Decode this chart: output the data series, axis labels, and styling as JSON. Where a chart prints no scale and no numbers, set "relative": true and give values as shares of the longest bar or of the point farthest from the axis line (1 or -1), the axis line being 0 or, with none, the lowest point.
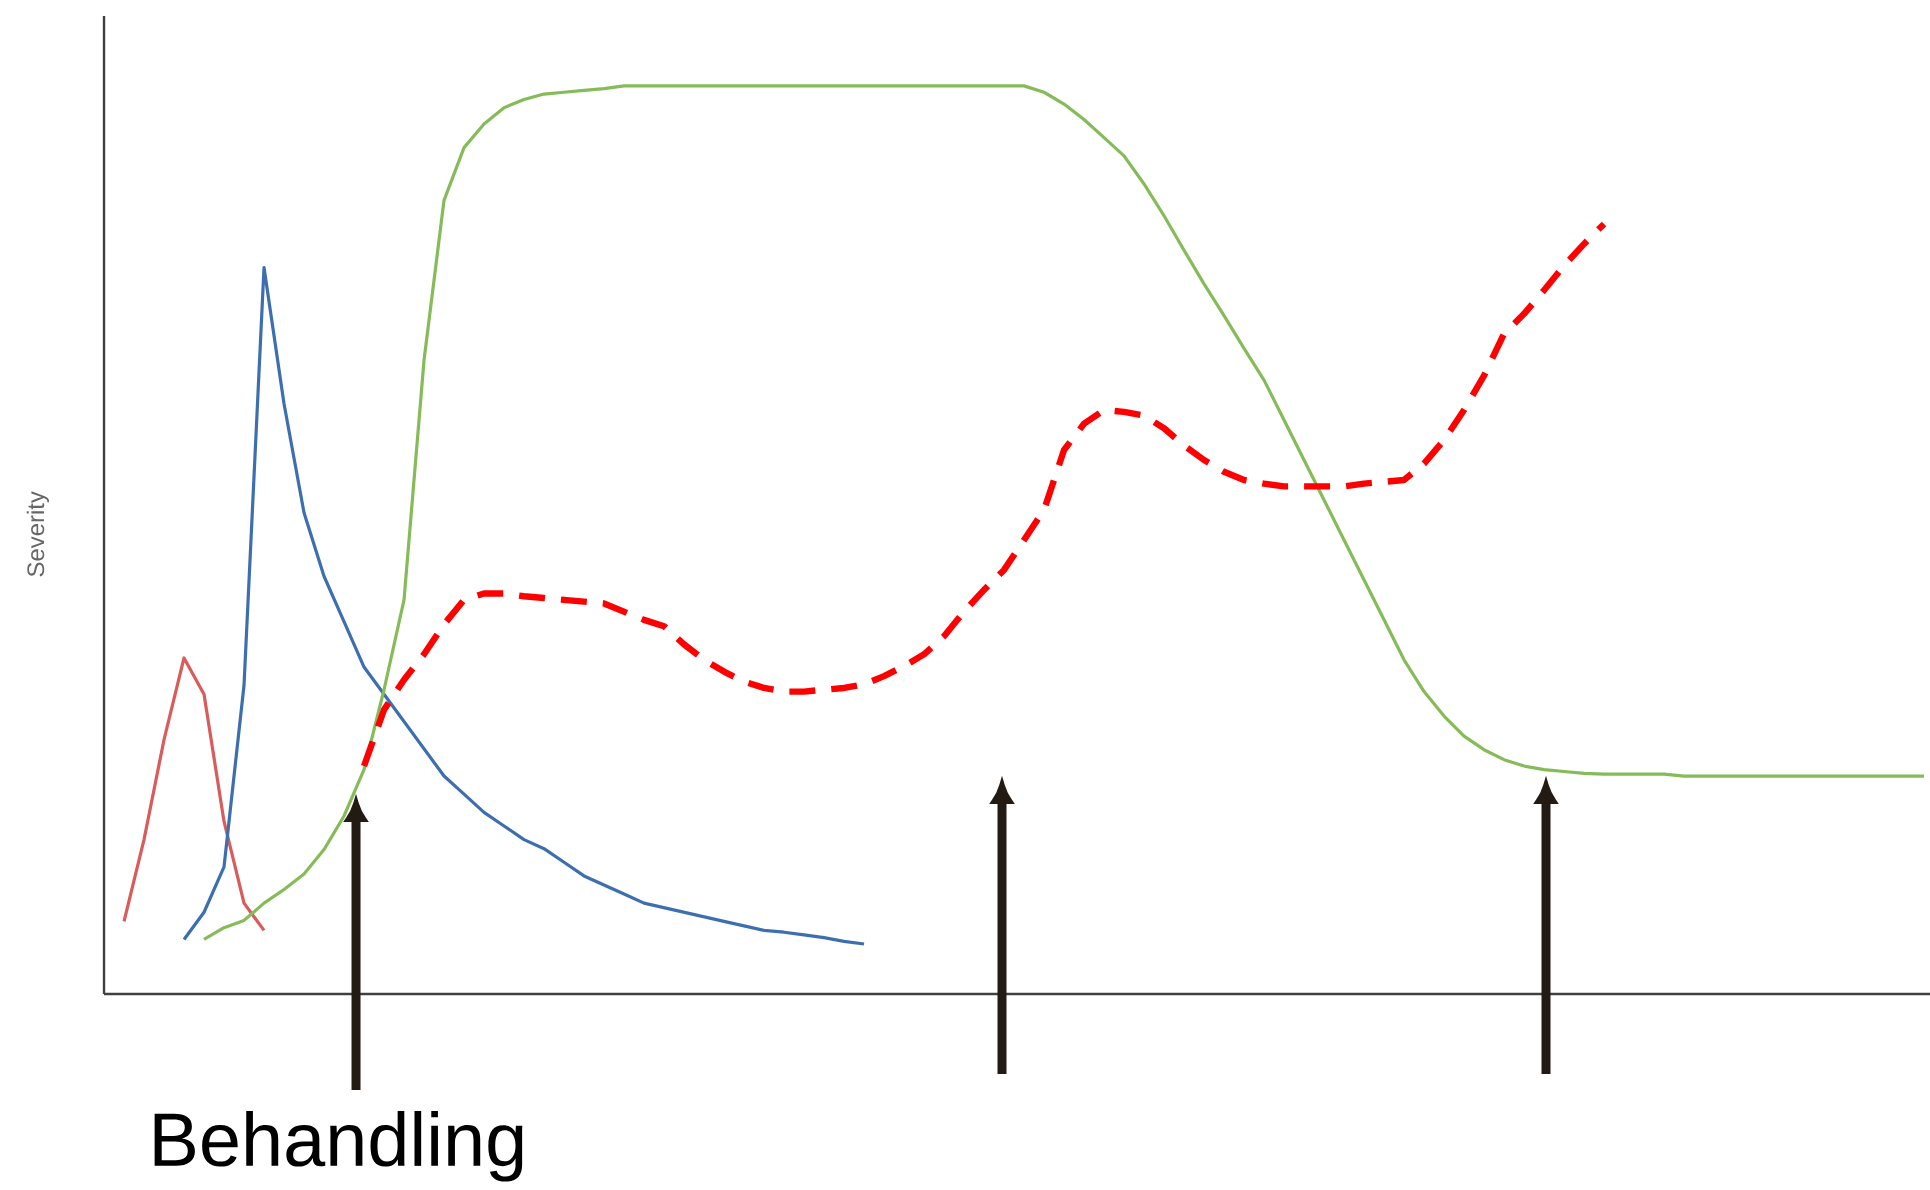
{
  "chart_data": {
    "type": "line",
    "relative": true,
    "ylabel": "Severity",
    "annotations": [
      "Behandling"
    ],
    "marker": "none",
    "categories": [
      null,
      null,
      null,
      null,
      null,
      null,
      null,
      null,
      null,
      null,
      null,
      null,
      null,
      null,
      null,
      null,
      null,
      null,
      null,
      null,
      null,
      null,
      null,
      null,
      null,
      null,
      null,
      null,
      null,
      null,
      null,
      null,
      null,
      null,
      null,
      null,
      null,
      null,
      null,
      null,
      null,
      null,
      null,
      null,
      null,
      null,
      null,
      null,
      null,
      null,
      null,
      null,
      null,
      null,
      null,
      null,
      null,
      null,
      null,
      null,
      null,
      null,
      null,
      null,
      null,
      null,
      null,
      null,
      null,
      null,
      null,
      null,
      null,
      null,
      null,
      null,
      null,
      null,
      null,
      null,
      null,
      null,
      null,
      null,
      null,
      null,
      null,
      null,
      null,
      null,
      null,
      null
    ],
    "series": [
      {
        "color": "#d95b5b",
        "line_style": "solid",
        "values": [
          null,
          0.08,
          0.17,
          0.28,
          0.37,
          0.33,
          0.19,
          0.1,
          0.07,
          null,
          null,
          null,
          null,
          null,
          null,
          null,
          null,
          null,
          null,
          null,
          null,
          null,
          null,
          null,
          null,
          null,
          null,
          null,
          null,
          null,
          null,
          null,
          null,
          null,
          null,
          null,
          null,
          null,
          null,
          null,
          null,
          null,
          null,
          null,
          null,
          null,
          null,
          null,
          null,
          null,
          null,
          null,
          null,
          null,
          null,
          null,
          null,
          null,
          null,
          null,
          null,
          null,
          null,
          null,
          null,
          null,
          null,
          null,
          null,
          null,
          null,
          null,
          null,
          null,
          null,
          null,
          null,
          null,
          null,
          null,
          null,
          null,
          null,
          null,
          null,
          null,
          null,
          null,
          null,
          null,
          null,
          null
        ]
      },
      {
        "color": "#3d6fb0",
        "line_style": "solid",
        "values": [
          null,
          null,
          null,
          null,
          0.06,
          0.09,
          0.14,
          0.34,
          0.8,
          0.65,
          0.53,
          0.46,
          0.41,
          0.36,
          0.33,
          0.3,
          0.27,
          0.24,
          0.22,
          0.2,
          0.185,
          0.17,
          0.16,
          0.145,
          0.13,
          0.12,
          0.11,
          0.1,
          0.095,
          0.09,
          0.085,
          0.08,
          0.075,
          0.07,
          0.068,
          0.065,
          0.062,
          0.058,
          0.055,
          null,
          null,
          null,
          null,
          null,
          null,
          null,
          null,
          null,
          null,
          null,
          null,
          null,
          null,
          null,
          null,
          null,
          null,
          null,
          null,
          null,
          null,
          null,
          null,
          null,
          null,
          null,
          null,
          null,
          null,
          null,
          null,
          null,
          null,
          null,
          null,
          null,
          null,
          null,
          null,
          null,
          null,
          null,
          null,
          null,
          null,
          null,
          null,
          null,
          null,
          null,
          null,
          null
        ]
      },
      {
        "color": "#86bb5a",
        "line_style": "solid",
        "values": [
          null,
          null,
          null,
          null,
          null,
          0.06,
          0.073,
          0.081,
          0.1,
          0.115,
          0.132,
          0.159,
          0.196,
          0.247,
          0.335,
          0.434,
          0.698,
          0.874,
          0.932,
          0.958,
          0.976,
          0.985,
          0.991,
          0.993,
          0.995,
          0.997,
          1.0,
          1.0,
          1.0,
          1.0,
          1.0,
          1.0,
          1.0,
          1.0,
          1.0,
          1.0,
          1.0,
          1.0,
          1.0,
          1.0,
          1.0,
          1.0,
          1.0,
          1.0,
          1.0,
          1.0,
          1.0,
          0.993,
          0.98,
          0.963,
          0.943,
          0.923,
          0.892,
          0.857,
          0.819,
          0.782,
          0.747,
          0.711,
          0.676,
          0.632,
          0.588,
          0.544,
          0.5,
          0.456,
          0.412,
          0.368,
          0.333,
          0.306,
          0.284,
          0.269,
          0.258,
          0.251,
          0.247,
          0.245,
          0.243,
          0.242,
          0.242,
          0.242,
          0.242,
          0.24,
          0.24,
          0.24,
          0.24,
          0.24,
          0.24,
          0.24,
          0.24,
          0.24,
          0.24,
          0.24,
          0.24,
          0.24
        ]
      },
      {
        "color": "#ff0000",
        "line_style": "dashed",
        "values": [
          null,
          null,
          null,
          null,
          null,
          null,
          null,
          null,
          null,
          null,
          null,
          null,
          null,
          0.251,
          0.313,
          0.346,
          0.374,
          0.407,
          0.434,
          0.441,
          0.441,
          0.438,
          0.436,
          0.434,
          0.432,
          0.43,
          0.421,
          0.412,
          0.405,
          0.385,
          0.368,
          0.355,
          0.344,
          0.337,
          0.333,
          0.333,
          0.335,
          0.337,
          0.341,
          0.35,
          0.361,
          0.374,
          0.394,
          0.421,
          0.445,
          0.467,
          0.5,
          0.533,
          0.599,
          0.628,
          0.643,
          0.641,
          0.637,
          0.623,
          0.604,
          0.588,
          0.575,
          0.566,
          0.562,
          0.559,
          0.559,
          0.559,
          0.559,
          0.562,
          0.564,
          0.566,
          0.584,
          0.61,
          0.643,
          0.681,
          0.727,
          0.749,
          0.775,
          0.802,
          0.826,
          0.848,
          null,
          null,
          null,
          null,
          null,
          null,
          null,
          null,
          null,
          null,
          null,
          null,
          null,
          null,
          null,
          null
        ]
      }
    ]
  }
}
